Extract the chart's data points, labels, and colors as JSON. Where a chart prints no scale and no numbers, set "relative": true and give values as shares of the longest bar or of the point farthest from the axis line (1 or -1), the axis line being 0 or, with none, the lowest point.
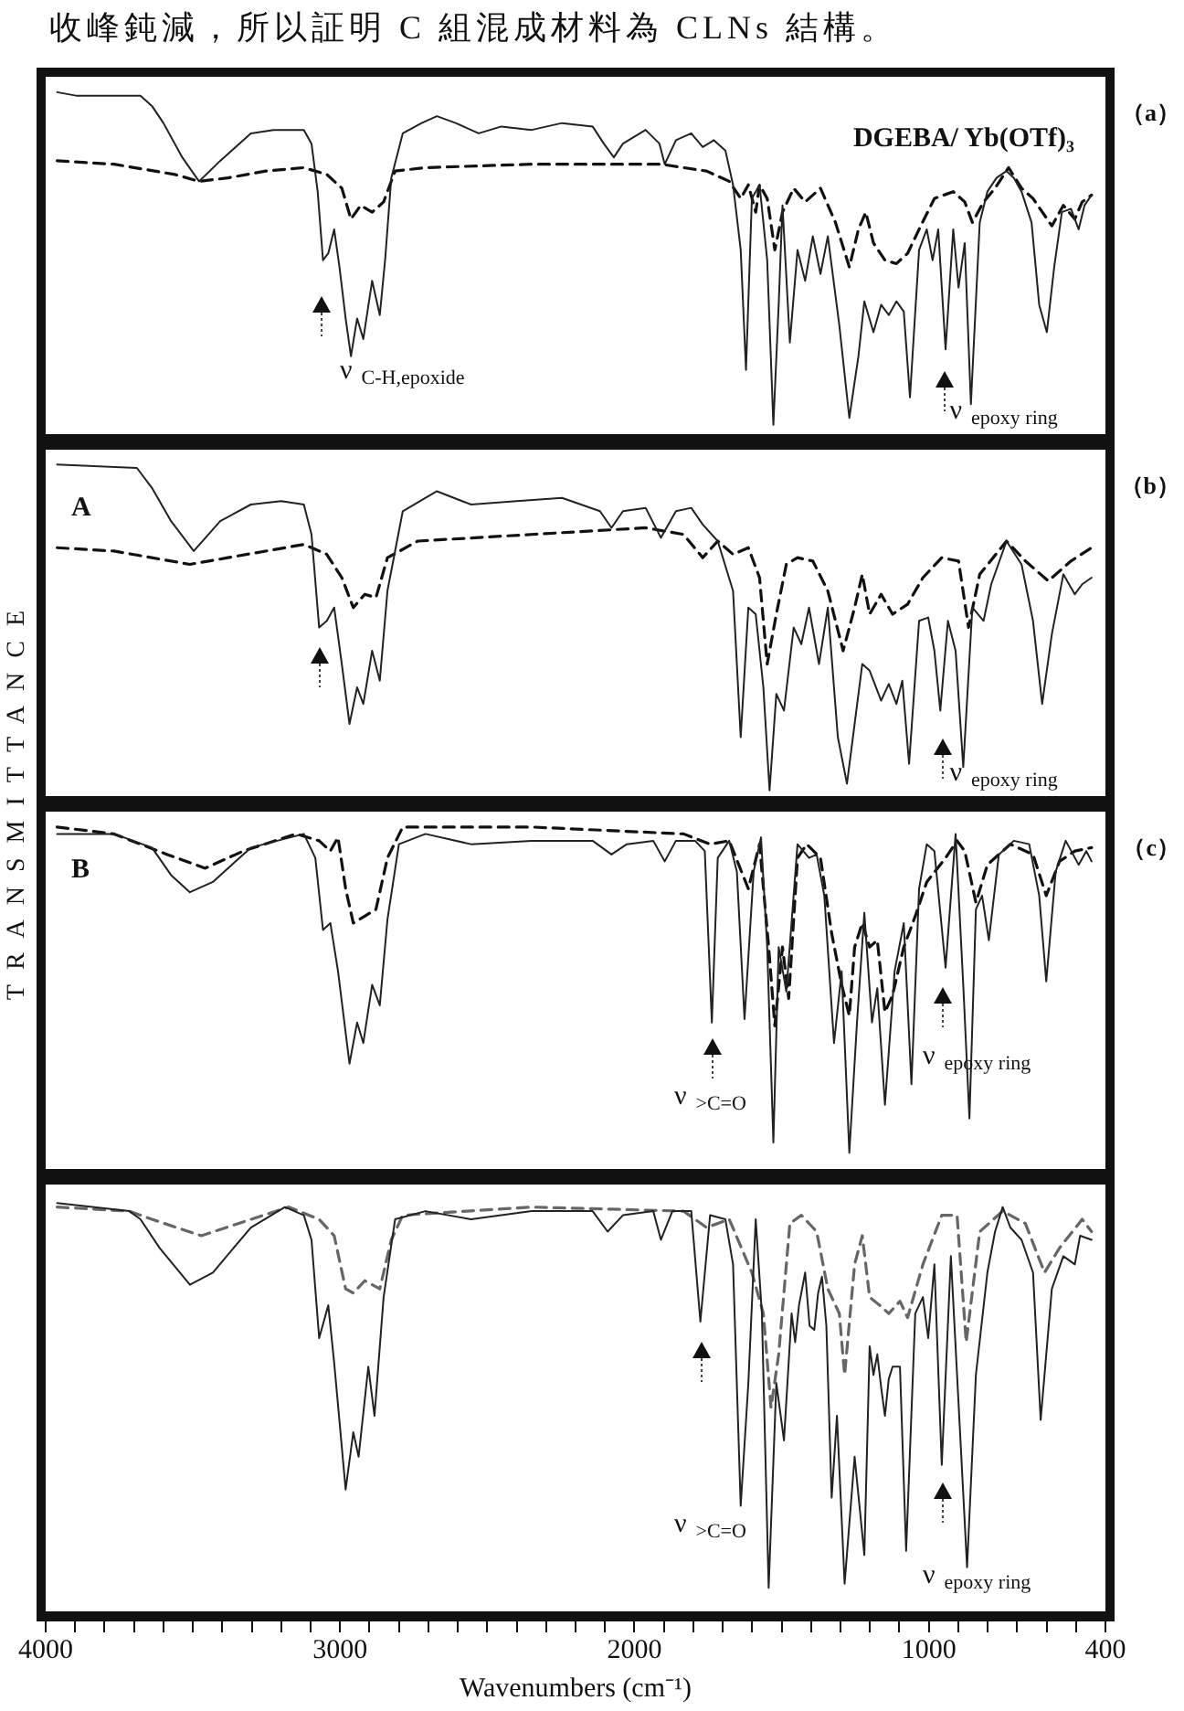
{
  "chart_data": [
    {
      "type": "line",
      "relative": true,
      "subtitle": "DGEBA/ Yb(OTf)₃",
      "xlim": [
        4000,
        400
      ],
      "tick_labels": false,
      "annotations": [
        "收峰鈍減，所以証明 C 組混成材料為 CLNs 結構。",
        "（a）",
        "ν$_{C-H,epoxide}$",
        "ν$_{epoxy ring}$"
      ],
      "series": [
        {
          "color": "#222222",
          "line_style": "solid",
          "x": [
            3961,
            3897,
            3678,
            3639,
            3600,
            3536,
            3479,
            3407,
            3303,
            3226,
            3123,
            3097,
            3076,
            3058,
            3040,
            3020,
            3002,
            2981,
            2963,
            2942,
            2921,
            2891,
            2865,
            2847,
            2826,
            2787,
            2723,
            2671,
            2607,
            2529,
            2452,
            2349,
            2246,
            2142,
            2104,
            2070,
            2039,
            1962,
            1915,
            1897,
            1859,
            1807,
            1768,
            1730,
            1691,
            1665,
            1639,
            1621,
            1601,
            1575,
            1549,
            1528,
            1510,
            1497,
            1472,
            1446,
            1420,
            1394,
            1368,
            1343,
            1304,
            1270,
            1239,
            1219,
            1188,
            1162,
            1136,
            1110,
            1085,
            1064,
            1033,
            1007,
            987,
            968,
            943,
            917,
            899,
            878,
            857,
            827,
            801,
            770,
            736,
            711,
            685,
            651,
            625,
            599,
            574,
            548,
            517,
            491,
            471,
            447
          ],
          "values": [
            1.0,
            0.99,
            0.99,
            0.96,
            0.91,
            0.81,
            0.74,
            0.8,
            0.88,
            0.89,
            0.89,
            0.85,
            0.71,
            0.51,
            0.53,
            0.6,
            0.49,
            0.34,
            0.23,
            0.34,
            0.28,
            0.45,
            0.35,
            0.51,
            0.75,
            0.88,
            0.91,
            0.93,
            0.91,
            0.88,
            0.9,
            0.89,
            0.91,
            0.9,
            0.85,
            0.81,
            0.85,
            0.89,
            0.85,
            0.79,
            0.86,
            0.88,
            0.84,
            0.86,
            0.83,
            0.73,
            0.54,
            0.19,
            0.69,
            0.73,
            0.51,
            0.03,
            0.38,
            0.67,
            0.27,
            0.54,
            0.45,
            0.58,
            0.47,
            0.58,
            0.32,
            0.05,
            0.23,
            0.39,
            0.3,
            0.38,
            0.35,
            0.39,
            0.36,
            0.11,
            0.54,
            0.6,
            0.51,
            0.6,
            0.25,
            0.6,
            0.43,
            0.56,
            0.09,
            0.62,
            0.71,
            0.75,
            0.77,
            0.75,
            0.71,
            0.62,
            0.38,
            0.3,
            0.49,
            0.65,
            0.66,
            0.6,
            0.67,
            0.7
          ]
        },
        {
          "color": "#111111",
          "line_style": "dashed",
          "x": [
            3961,
            3768,
            3561,
            3479,
            3381,
            3252,
            3123,
            3045,
            2994,
            2963,
            2930,
            2891,
            2852,
            2813,
            2710,
            2349,
            1910,
            1755,
            1678,
            1639,
            1613,
            1588,
            1575,
            1549,
            1523,
            1497,
            1459,
            1420,
            1368,
            1317,
            1270,
            1239,
            1214,
            1188,
            1149,
            1110,
            1072,
            1033,
            981,
            917,
            878,
            852,
            814,
            775,
            729,
            685,
            646,
            582,
            543,
            504,
            479,
            447
          ],
          "values": [
            0.8,
            0.79,
            0.76,
            0.74,
            0.75,
            0.77,
            0.78,
            0.76,
            0.72,
            0.63,
            0.67,
            0.65,
            0.68,
            0.77,
            0.78,
            0.79,
            0.79,
            0.77,
            0.74,
            0.69,
            0.73,
            0.65,
            0.73,
            0.69,
            0.54,
            0.65,
            0.72,
            0.68,
            0.72,
            0.62,
            0.49,
            0.6,
            0.65,
            0.56,
            0.51,
            0.5,
            0.53,
            0.6,
            0.69,
            0.71,
            0.68,
            0.62,
            0.68,
            0.72,
            0.78,
            0.72,
            0.69,
            0.61,
            0.67,
            0.63,
            0.68,
            0.7
          ]
        }
      ]
    },
    {
      "type": "line",
      "relative": true,
      "subtitle": "A",
      "ylabel": "TRANSMITTANCE",
      "xlim": [
        4000,
        400
      ],
      "tick_labels": false,
      "annotations": [
        "（b）",
        "ν$_{epoxy ring}$"
      ],
      "series": [
        {
          "color": "#222222",
          "line_style": "solid",
          "x": [
            3961,
            3690,
            3639,
            3574,
            3497,
            3407,
            3303,
            3200,
            3123,
            3097,
            3071,
            3045,
            3020,
            2994,
            2968,
            2942,
            2921,
            2891,
            2865,
            2839,
            2787,
            2671,
            2555,
            2400,
            2246,
            2117,
            2078,
            2039,
            1962,
            1910,
            1859,
            1807,
            1768,
            1717,
            1665,
            1639,
            1613,
            1588,
            1562,
            1541,
            1518,
            1492,
            1459,
            1433,
            1407,
            1373,
            1343,
            1309,
            1278,
            1252,
            1226,
            1201,
            1162,
            1136,
            1110,
            1090,
            1067,
            1033,
            1002,
            981,
            961,
            935,
            909,
            883,
            852,
            814,
            788,
            736,
            685,
            646,
            615,
            582,
            543,
            504,
            479,
            447
          ],
          "values": [
            1.0,
            0.99,
            0.93,
            0.83,
            0.74,
            0.83,
            0.88,
            0.89,
            0.88,
            0.79,
            0.51,
            0.53,
            0.57,
            0.4,
            0.22,
            0.33,
            0.28,
            0.44,
            0.35,
            0.62,
            0.86,
            0.92,
            0.88,
            0.89,
            0.9,
            0.86,
            0.81,
            0.86,
            0.87,
            0.78,
            0.86,
            0.87,
            0.82,
            0.77,
            0.62,
            0.18,
            0.57,
            0.55,
            0.33,
            0.02,
            0.31,
            0.26,
            0.51,
            0.46,
            0.57,
            0.4,
            0.57,
            0.18,
            0.04,
            0.22,
            0.4,
            0.38,
            0.29,
            0.34,
            0.28,
            0.35,
            0.1,
            0.53,
            0.54,
            0.44,
            0.26,
            0.53,
            0.44,
            0.09,
            0.57,
            0.53,
            0.64,
            0.77,
            0.7,
            0.53,
            0.28,
            0.49,
            0.67,
            0.61,
            0.64,
            0.66
          ]
        },
        {
          "color": "#111111",
          "line_style": "dashed",
          "x": [
            3961,
            3768,
            3510,
            3381,
            3123,
            3045,
            2994,
            2955,
            2916,
            2878,
            2839,
            2736,
            2349,
            1962,
            1833,
            1768,
            1717,
            1665,
            1613,
            1575,
            1549,
            1518,
            1484,
            1446,
            1394,
            1343,
            1291,
            1252,
            1226,
            1201,
            1162,
            1123,
            1072,
            1020,
            956,
            899,
            865,
            827,
            736,
            672,
            594,
            517,
            447
          ],
          "values": [
            0.75,
            0.74,
            0.7,
            0.72,
            0.76,
            0.73,
            0.66,
            0.57,
            0.61,
            0.6,
            0.72,
            0.77,
            0.79,
            0.81,
            0.79,
            0.72,
            0.77,
            0.73,
            0.75,
            0.66,
            0.4,
            0.55,
            0.7,
            0.72,
            0.71,
            0.62,
            0.44,
            0.57,
            0.67,
            0.55,
            0.61,
            0.55,
            0.58,
            0.66,
            0.72,
            0.71,
            0.51,
            0.67,
            0.77,
            0.71,
            0.65,
            0.71,
            0.75
          ]
        }
      ]
    },
    {
      "type": "line",
      "relative": true,
      "subtitle": "B",
      "xlim": [
        4000,
        400
      ],
      "tick_labels": false,
      "annotations": [
        "（c）",
        "ν$_{>C=O}$",
        "ν$_{epoxy ring}$"
      ],
      "series": [
        {
          "color": "#222222",
          "line_style": "solid",
          "x": [
            3961,
            3768,
            3639,
            3574,
            3510,
            3432,
            3303,
            3123,
            3084,
            3058,
            3033,
            3007,
            2968,
            2942,
            2921,
            2891,
            2865,
            2839,
            2800,
            2710,
            2555,
            2349,
            2142,
            2078,
            2026,
            1936,
            1897,
            1859,
            1794,
            1761,
            1737,
            1717,
            1678,
            1652,
            1626,
            1595,
            1570,
            1549,
            1528,
            1510,
            1484,
            1446,
            1407,
            1381,
            1355,
            1322,
            1296,
            1270,
            1244,
            1219,
            1193,
            1175,
            1149,
            1116,
            1085,
            1059,
            1033,
            1007,
            981,
            943,
            909,
            883,
            862,
            840,
            819,
            796,
            762,
            711,
            659,
            625,
            601,
            569,
            535,
            491,
            465,
            447
          ],
          "values": [
            0.98,
            0.98,
            0.94,
            0.86,
            0.81,
            0.84,
            0.94,
            0.98,
            0.91,
            0.7,
            0.72,
            0.58,
            0.31,
            0.43,
            0.37,
            0.54,
            0.48,
            0.73,
            0.95,
            0.98,
            0.95,
            0.96,
            0.96,
            0.92,
            0.95,
            0.96,
            0.9,
            0.96,
            0.96,
            0.93,
            0.43,
            0.91,
            0.96,
            0.87,
            0.44,
            0.87,
            0.97,
            0.65,
            0.08,
            0.65,
            0.52,
            0.95,
            0.91,
            0.92,
            0.8,
            0.37,
            0.58,
            0.05,
            0.43,
            0.75,
            0.43,
            0.53,
            0.19,
            0.58,
            0.72,
            0.25,
            0.82,
            0.95,
            0.93,
            0.59,
            0.98,
            0.54,
            0.15,
            0.76,
            0.8,
            0.67,
            0.92,
            0.96,
            0.95,
            0.8,
            0.55,
            0.87,
            0.96,
            0.89,
            0.93,
            0.9
          ]
        },
        {
          "color": "#111111",
          "line_style": "dashed",
          "x": [
            3961,
            3768,
            3587,
            3458,
            3329,
            3149,
            3071,
            3033,
            3007,
            2981,
            2955,
            2916,
            2878,
            2839,
            2787,
            2349,
            1833,
            1743,
            1678,
            1613,
            1575,
            1544,
            1523,
            1497,
            1476,
            1446,
            1415,
            1368,
            1330,
            1296,
            1270,
            1252,
            1226,
            1201,
            1175,
            1149,
            1123,
            1085,
            1046,
            1007,
            943,
            904,
            878,
            840,
            801,
            723,
            646,
            601,
            556,
            504,
            447
          ],
          "values": [
            1.0,
            0.98,
            0.92,
            0.88,
            0.93,
            0.98,
            0.96,
            0.93,
            0.97,
            0.82,
            0.72,
            0.74,
            0.76,
            0.91,
            1.0,
            1.0,
            0.98,
            0.95,
            0.96,
            0.82,
            0.95,
            0.65,
            0.42,
            0.65,
            0.5,
            0.91,
            0.95,
            0.91,
            0.69,
            0.54,
            0.45,
            0.65,
            0.72,
            0.65,
            0.67,
            0.46,
            0.51,
            0.65,
            0.74,
            0.84,
            0.91,
            0.96,
            0.93,
            0.78,
            0.89,
            0.95,
            0.92,
            0.8,
            0.9,
            0.93,
            0.94
          ]
        }
      ]
    },
    {
      "type": "line",
      "relative": true,
      "xlabel": "Wavenumbers (cm⁻¹)",
      "xlim": [
        4000,
        400
      ],
      "tick_labels": "x",
      "xticks": [
        4000,
        {
          "value": 3900,
          "label": null
        },
        {
          "value": 3800,
          "label": null
        },
        {
          "value": 3700,
          "label": null
        },
        {
          "value": 3600,
          "label": null
        },
        {
          "value": 3500,
          "label": null
        },
        {
          "value": 3400,
          "label": null
        },
        {
          "value": 3300,
          "label": null
        },
        {
          "value": 3200,
          "label": null
        },
        {
          "value": 3100,
          "label": null
        },
        3000,
        {
          "value": 2900,
          "label": null
        },
        {
          "value": 2800,
          "label": null
        },
        {
          "value": 2700,
          "label": null
        },
        {
          "value": 2600,
          "label": null
        },
        {
          "value": 2500,
          "label": null
        },
        {
          "value": 2400,
          "label": null
        },
        {
          "value": 2300,
          "label": null
        },
        {
          "value": 2200,
          "label": null
        },
        {
          "value": 2100,
          "label": null
        },
        2000,
        {
          "value": 1900,
          "label": null
        },
        {
          "value": 1800,
          "label": null
        },
        {
          "value": 1700,
          "label": null
        },
        {
          "value": 1600,
          "label": null
        },
        {
          "value": 1500,
          "label": null
        },
        {
          "value": 1400,
          "label": null
        },
        {
          "value": 1300,
          "label": null
        },
        {
          "value": 1200,
          "label": null
        },
        {
          "value": 1100,
          "label": null
        },
        1000,
        {
          "value": 900,
          "label": null
        },
        {
          "value": 800,
          "label": null
        },
        {
          "value": 700,
          "label": null
        },
        {
          "value": 600,
          "label": null
        },
        {
          "value": 500,
          "label": null
        },
        400
      ],
      "annotations": [
        "ν$_{>C=O}$",
        "ν$_{epoxy ring}$"
      ],
      "series": [
        {
          "color": "#222222",
          "line_style": "solid",
          "x": [
            3961,
            3716,
            3678,
            3613,
            3510,
            3432,
            3303,
            3187,
            3123,
            3097,
            3071,
            3040,
            3020,
            2981,
            2955,
            2937,
            2904,
            2883,
            2852,
            2813,
            2710,
            2555,
            2349,
            2142,
            2091,
            2039,
            1936,
            1910,
            1871,
            1807,
            1776,
            1743,
            1691,
            1665,
            1639,
            1613,
            1588,
            1567,
            1544,
            1518,
            1492,
            1466,
            1454,
            1441,
            1420,
            1405,
            1389,
            1376,
            1363,
            1348,
            1330,
            1312,
            1286,
            1252,
            1219,
            1201,
            1188,
            1175,
            1162,
            1149,
            1136,
            1123,
            1098,
            1077,
            1046,
            1020,
            1002,
            981,
            956,
            925,
            904,
            870,
            840,
            801,
            775,
            749,
            723,
            685,
            646,
            620,
            582,
            543,
            504,
            486,
            447
          ],
          "values": [
            1.0,
            0.98,
            0.96,
            0.89,
            0.8,
            0.83,
            0.94,
            0.99,
            0.97,
            0.91,
            0.67,
            0.75,
            0.61,
            0.3,
            0.44,
            0.38,
            0.6,
            0.48,
            0.77,
            0.96,
            0.98,
            0.96,
            0.98,
            0.98,
            0.93,
            0.97,
            0.98,
            0.91,
            0.98,
            0.98,
            0.71,
            0.97,
            0.96,
            0.85,
            0.26,
            0.56,
            0.96,
            0.73,
            0.06,
            0.56,
            0.42,
            0.73,
            0.66,
            0.75,
            0.83,
            0.7,
            0.69,
            0.78,
            0.82,
            0.7,
            0.28,
            0.48,
            0.07,
            0.38,
            0.14,
            0.65,
            0.58,
            0.63,
            0.55,
            0.48,
            0.57,
            0.6,
            0.6,
            0.15,
            0.73,
            0.77,
            0.67,
            0.85,
            0.36,
            0.87,
            0.58,
            0.11,
            0.58,
            0.83,
            0.93,
            0.99,
            0.94,
            0.91,
            0.83,
            0.47,
            0.79,
            0.87,
            0.85,
            0.92,
            0.91
          ]
        },
        {
          "color": "#666666",
          "line_style": "dashed",
          "x": [
            3961,
            3716,
            3639,
            3471,
            3303,
            3174,
            3071,
            3020,
            2981,
            2955,
            2916,
            2865,
            2826,
            2787,
            2349,
            1833,
            1755,
            1678,
            1601,
            1562,
            1536,
            1510,
            1472,
            1433,
            1381,
            1343,
            1304,
            1286,
            1252,
            1226,
            1201,
            1167,
            1136,
            1098,
            1072,
            1020,
            956,
            904,
            873,
            827,
            749,
            672,
            607,
            556,
            479,
            447
          ],
          "values": [
            0.99,
            0.98,
            0.96,
            0.92,
            0.96,
            0.99,
            0.96,
            0.92,
            0.79,
            0.78,
            0.81,
            0.79,
            0.91,
            0.97,
            0.99,
            0.98,
            0.94,
            0.96,
            0.83,
            0.73,
            0.5,
            0.63,
            0.95,
            0.97,
            0.93,
            0.79,
            0.73,
            0.58,
            0.85,
            0.92,
            0.77,
            0.75,
            0.73,
            0.76,
            0.72,
            0.85,
            0.97,
            0.97,
            0.66,
            0.93,
            0.98,
            0.95,
            0.83,
            0.89,
            0.96,
            0.93
          ]
        }
      ]
    }
  ]
}
